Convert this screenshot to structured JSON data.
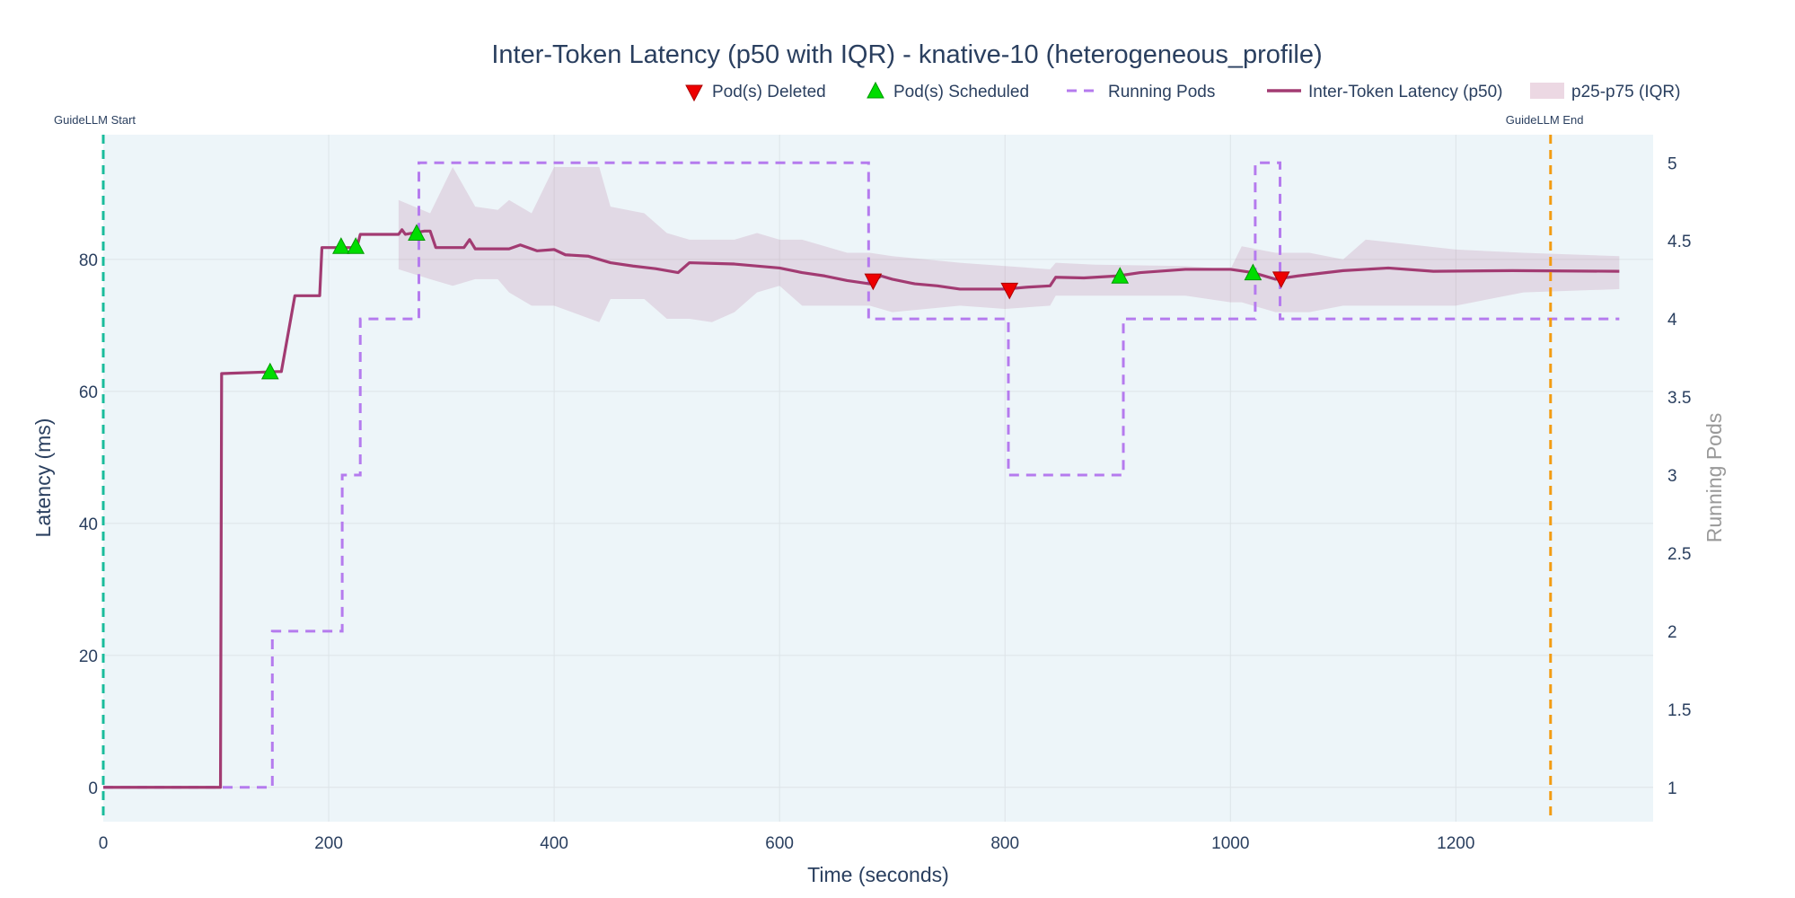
{
  "chart_data": {
    "type": "line",
    "title": "Inter-Token Latency (p50 with IQR) - knative-10 (heterogeneous_profile)",
    "xlabel": "Time (seconds)",
    "ylabel": "Latency (ms)",
    "y2label": "Running Pods",
    "xlim": [
      0,
      1375
    ],
    "ylim": [
      -5.2,
      98.9
    ],
    "y2lim": [
      0.78,
      5.18
    ],
    "xticks": [
      "0",
      "200",
      "400",
      "600",
      "800",
      "1000",
      "1200"
    ],
    "yticks": [
      "0",
      "20",
      "40",
      "60",
      "80"
    ],
    "y2ticks": [
      "1",
      "1.5",
      "2",
      "2.5",
      "3",
      "3.5",
      "4",
      "4.5",
      "5"
    ],
    "grid": true,
    "legend_position": "top-right",
    "legend": [
      "Pod(s) Deleted",
      "Pod(s) Scheduled",
      "Running Pods",
      "Inter-Token Latency (p50)",
      "p25-p75 (IQR)"
    ],
    "colors": {
      "p50": "#a23b72",
      "iqr": "#a23b72",
      "pods": "#b57bee",
      "deleted": "#ee0000",
      "scheduled": "#00dd00",
      "start": "#1abc9c",
      "end": "#f39c12",
      "plot_bg": "#edf5f9"
    },
    "series": [
      {
        "name": "Inter-Token Latency (p50)",
        "x": [
          0,
          104,
          105,
          155,
          158,
          170,
          192,
          194,
          225,
          228,
          262,
          265,
          268,
          285,
          290,
          295,
          320,
          325,
          330,
          360,
          370,
          385,
          400,
          410,
          430,
          450,
          470,
          490,
          510,
          520,
          560,
          600,
          620,
          640,
          660,
          680,
          690,
          700,
          720,
          740,
          760,
          800,
          820,
          840,
          845,
          870,
          900,
          920,
          960,
          1000,
          1020,
          1040,
          1060,
          1100,
          1140,
          1180,
          1250,
          1345
        ],
        "y": [
          0,
          0,
          62.7,
          63,
          63,
          74.5,
          74.5,
          81.8,
          81.8,
          83.8,
          83.8,
          84.5,
          83.8,
          84.3,
          84.3,
          81.8,
          81.8,
          83,
          81.6,
          81.6,
          82.2,
          81.3,
          81.5,
          80.7,
          80.5,
          79.5,
          79,
          78.6,
          78,
          79.5,
          79.3,
          78.7,
          78,
          77.5,
          76.8,
          76.3,
          77.5,
          77,
          76.3,
          76,
          75.5,
          75.5,
          75.8,
          76,
          77.3,
          77.2,
          77.5,
          78,
          78.5,
          78.5,
          78,
          77,
          77.5,
          78.3,
          78.7,
          78.2,
          78.3,
          78.2
        ]
      },
      {
        "name": "p25-p75 (IQR)",
        "x": [
          262,
          290,
          310,
          330,
          350,
          360,
          380,
          400,
          440,
          450,
          480,
          500,
          520,
          540,
          560,
          580,
          600,
          620,
          660,
          680,
          700,
          760,
          800,
          840,
          845,
          880,
          960,
          1000,
          1010,
          1040,
          1070,
          1100,
          1120,
          1200,
          1260,
          1345
        ],
        "p75": [
          89,
          87,
          94,
          88,
          87.5,
          89,
          87,
          94,
          94,
          88,
          87,
          84,
          83,
          83,
          83,
          84,
          83,
          83,
          81,
          81,
          80.5,
          79.5,
          79,
          78.5,
          79.5,
          79.2,
          79,
          78.5,
          82,
          81,
          81,
          80,
          83,
          81.5,
          81,
          80.5
        ],
        "p25": [
          78.5,
          77,
          76,
          77,
          77,
          75,
          73,
          73,
          70.5,
          74,
          74,
          71,
          71,
          70.5,
          72,
          75,
          76,
          73,
          73,
          73,
          72,
          73,
          72.5,
          73,
          74.5,
          74.5,
          74.5,
          73.5,
          73.5,
          72,
          72,
          73,
          73,
          73,
          75,
          75.5
        ]
      },
      {
        "name": "Running Pods",
        "axis": "y2",
        "x": [
          0,
          150,
          150,
          212,
          212,
          228,
          228,
          280,
          280,
          679,
          679,
          803,
          803,
          905,
          905,
          1022,
          1022,
          1044,
          1044,
          1345
        ],
        "y": [
          1,
          1,
          2,
          2,
          3,
          3,
          4,
          4,
          5,
          5,
          4,
          4,
          3,
          3,
          4,
          4,
          5,
          5,
          4,
          4
        ]
      },
      {
        "name": "Pod(s) Deleted",
        "type": "scatter",
        "x": [
          683,
          804,
          1045
        ],
        "y": [
          76.7,
          75.3,
          77
        ]
      },
      {
        "name": "Pod(s) Scheduled",
        "type": "scatter",
        "x": [
          148,
          211,
          224,
          278,
          902,
          1020
        ],
        "y": [
          63,
          82,
          82,
          84,
          77.5,
          78
        ]
      }
    ],
    "annotations": [
      {
        "text": "GuideLLM Start",
        "x": 0
      },
      {
        "text": "GuideLLM End",
        "x": 1284
      }
    ]
  }
}
